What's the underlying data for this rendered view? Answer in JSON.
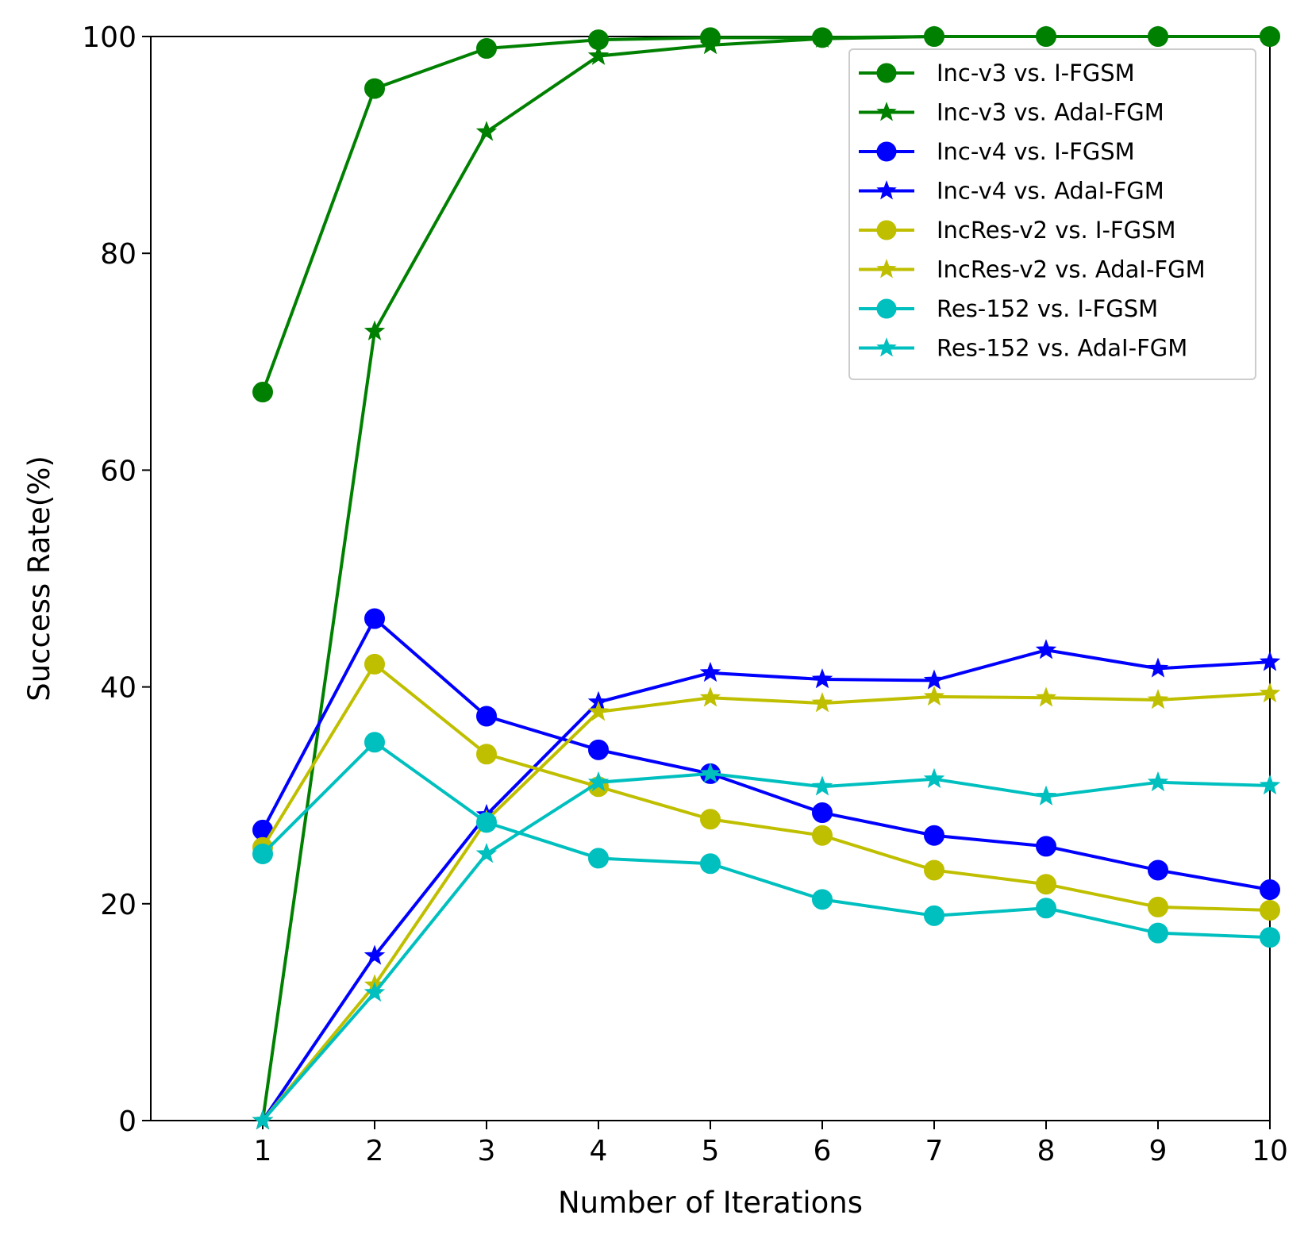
{
  "chart_data": {
    "type": "line",
    "title": "",
    "xlabel": "Number of Iterations",
    "ylabel": "Success Rate(%)",
    "xlim": [
      0,
      10
    ],
    "ylim": [
      0,
      100
    ],
    "x": [
      1,
      2,
      3,
      4,
      5,
      6,
      7,
      8,
      9,
      10
    ],
    "xticks": [
      "1",
      "2",
      "3",
      "4",
      "5",
      "6",
      "7",
      "8",
      "9",
      "10"
    ],
    "yticks": [
      "0",
      "20",
      "40",
      "60",
      "80",
      "100"
    ],
    "grid": false,
    "legend_position": "top-right",
    "series": [
      {
        "name": "Inc-v3 vs. I-FGSM",
        "color": "#008000",
        "marker": "circle",
        "values": [
          67.2,
          95.2,
          98.9,
          99.7,
          99.9,
          99.9,
          100,
          100,
          100,
          100
        ]
      },
      {
        "name": "Inc-v3 vs. AdaI-FGM",
        "color": "#008000",
        "marker": "star",
        "values": [
          0,
          72.8,
          91.2,
          98.2,
          99.2,
          99.8,
          100,
          100,
          100,
          100
        ]
      },
      {
        "name": "Inc-v4 vs. I-FGSM",
        "color": "#0000ff",
        "marker": "circle",
        "values": [
          26.8,
          46.3,
          37.3,
          34.2,
          32.0,
          28.4,
          26.3,
          25.3,
          23.1,
          21.3
        ]
      },
      {
        "name": "Inc-v4 vs. AdaI-FGM",
        "color": "#0000ff",
        "marker": "star",
        "values": [
          0,
          15.2,
          28.2,
          38.6,
          41.3,
          40.7,
          40.6,
          43.4,
          41.7,
          42.3
        ]
      },
      {
        "name": "IncRes-v2 vs. I-FGSM",
        "color": "#bfbf00",
        "marker": "circle",
        "values": [
          25.2,
          42.1,
          33.8,
          30.8,
          27.8,
          26.3,
          23.1,
          21.8,
          19.7,
          19.4
        ]
      },
      {
        "name": "IncRes-v2 vs. AdaI-FGM",
        "color": "#bfbf00",
        "marker": "star",
        "values": [
          0,
          12.5,
          27.7,
          37.7,
          39.0,
          38.5,
          39.1,
          39.0,
          38.8,
          39.4
        ]
      },
      {
        "name": "Res-152 vs. I-FGSM",
        "color": "#00bfbf",
        "marker": "circle",
        "values": [
          24.6,
          34.9,
          27.5,
          24.2,
          23.7,
          20.4,
          18.9,
          19.6,
          17.3,
          16.9
        ]
      },
      {
        "name": "Res-152 vs. AdaI-FGM",
        "color": "#00bfbf",
        "marker": "star",
        "values": [
          0,
          11.8,
          24.6,
          31.2,
          32.0,
          30.8,
          31.5,
          29.9,
          31.2,
          30.9
        ]
      }
    ]
  }
}
